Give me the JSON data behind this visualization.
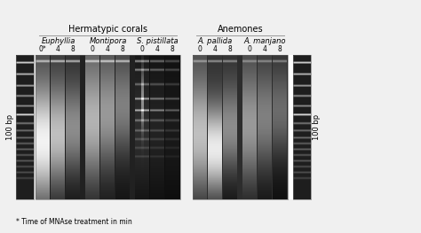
{
  "title_hermatypic": "Hermatypic corals",
  "title_anemones": "Anemones",
  "species": [
    "Euphyllia",
    "Montipora",
    "S. pistillata",
    "A. pallida",
    "A. manjano"
  ],
  "time_labels_coral": [
    "0*",
    "4",
    "8",
    "0",
    "4",
    "8",
    "0",
    "4",
    "8"
  ],
  "time_labels_anem": [
    "0",
    "4",
    "8",
    "0",
    "4",
    "8"
  ],
  "ladder_label": "100 bp",
  "footnote": "* Time of MNAse treatment in min",
  "bg_color": "#f0f0f0",
  "footnote_size": 5.5,
  "header_size": 7,
  "species_size": 6,
  "time_size": 5.5,
  "ladder_size": 6
}
